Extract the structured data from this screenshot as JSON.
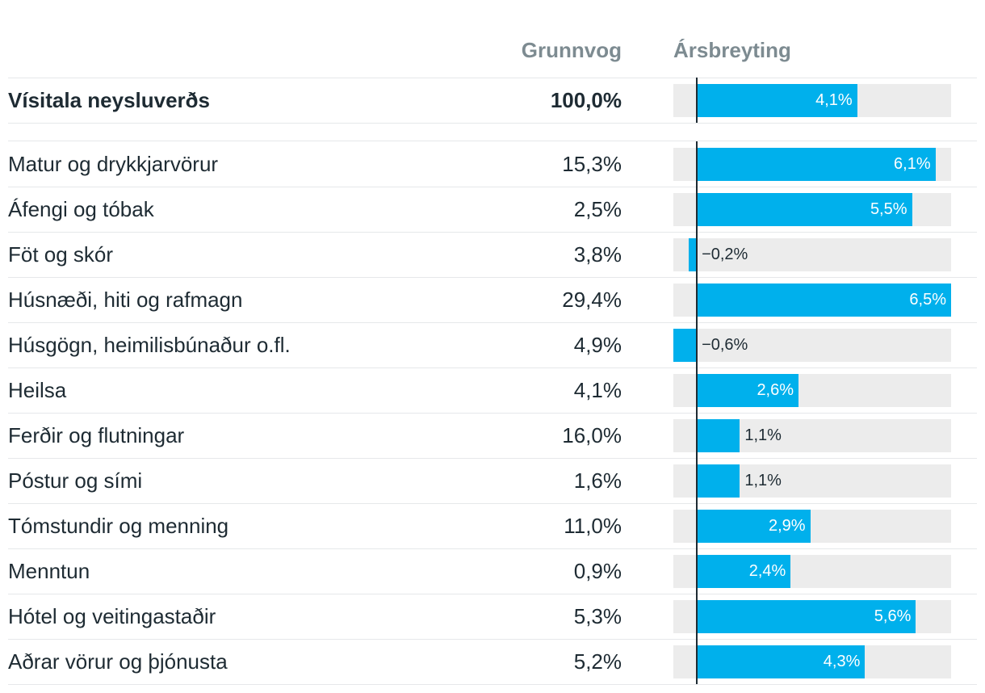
{
  "columns": {
    "weight": "Grunnvog",
    "change": "Ársbreyting"
  },
  "chart_data": {
    "type": "bar",
    "orientation": "horizontal",
    "xlim": [
      -0.6,
      6.5
    ],
    "total": {
      "category": "Vísitala neysluverðs",
      "weight": "100,0%",
      "value": 4.1,
      "value_label": "4,1%"
    },
    "rows": [
      {
        "category": "Matur og drykkjarvörur",
        "weight": "15,3%",
        "value": 6.1,
        "value_label": "6,1%"
      },
      {
        "category": "Áfengi og tóbak",
        "weight": "2,5%",
        "value": 5.5,
        "value_label": "5,5%"
      },
      {
        "category": "Föt og skór",
        "weight": "3,8%",
        "value": -0.2,
        "value_label": "−0,2%"
      },
      {
        "category": "Húsnæði, hiti og rafmagn",
        "weight": "29,4%",
        "value": 6.5,
        "value_label": "6,5%"
      },
      {
        "category": "Húsgögn, heimilisbúnaður o.fl.",
        "weight": "4,9%",
        "value": -0.6,
        "value_label": "−0,6%"
      },
      {
        "category": "Heilsa",
        "weight": "4,1%",
        "value": 2.6,
        "value_label": "2,6%"
      },
      {
        "category": "Ferðir og flutningar",
        "weight": "16,0%",
        "value": 1.1,
        "value_label": "1,1%"
      },
      {
        "category": "Póstur og sími",
        "weight": "1,6%",
        "value": 1.1,
        "value_label": "1,1%"
      },
      {
        "category": "Tómstundir og menning",
        "weight": "11,0%",
        "value": 2.9,
        "value_label": "2,9%"
      },
      {
        "category": "Menntun",
        "weight": "0,9%",
        "value": 2.4,
        "value_label": "2,4%"
      },
      {
        "category": "Hótel og veitingastaðir",
        "weight": "5,3%",
        "value": 5.6,
        "value_label": "5,6%"
      },
      {
        "category": "Aðrar vörur og þjónusta",
        "weight": "5,2%",
        "value": 4.3,
        "value_label": "4,3%"
      }
    ]
  },
  "colors": {
    "bar": "#00b0ec",
    "track": "#ececec",
    "text": "#1e2b33",
    "header": "#7d8b91"
  }
}
